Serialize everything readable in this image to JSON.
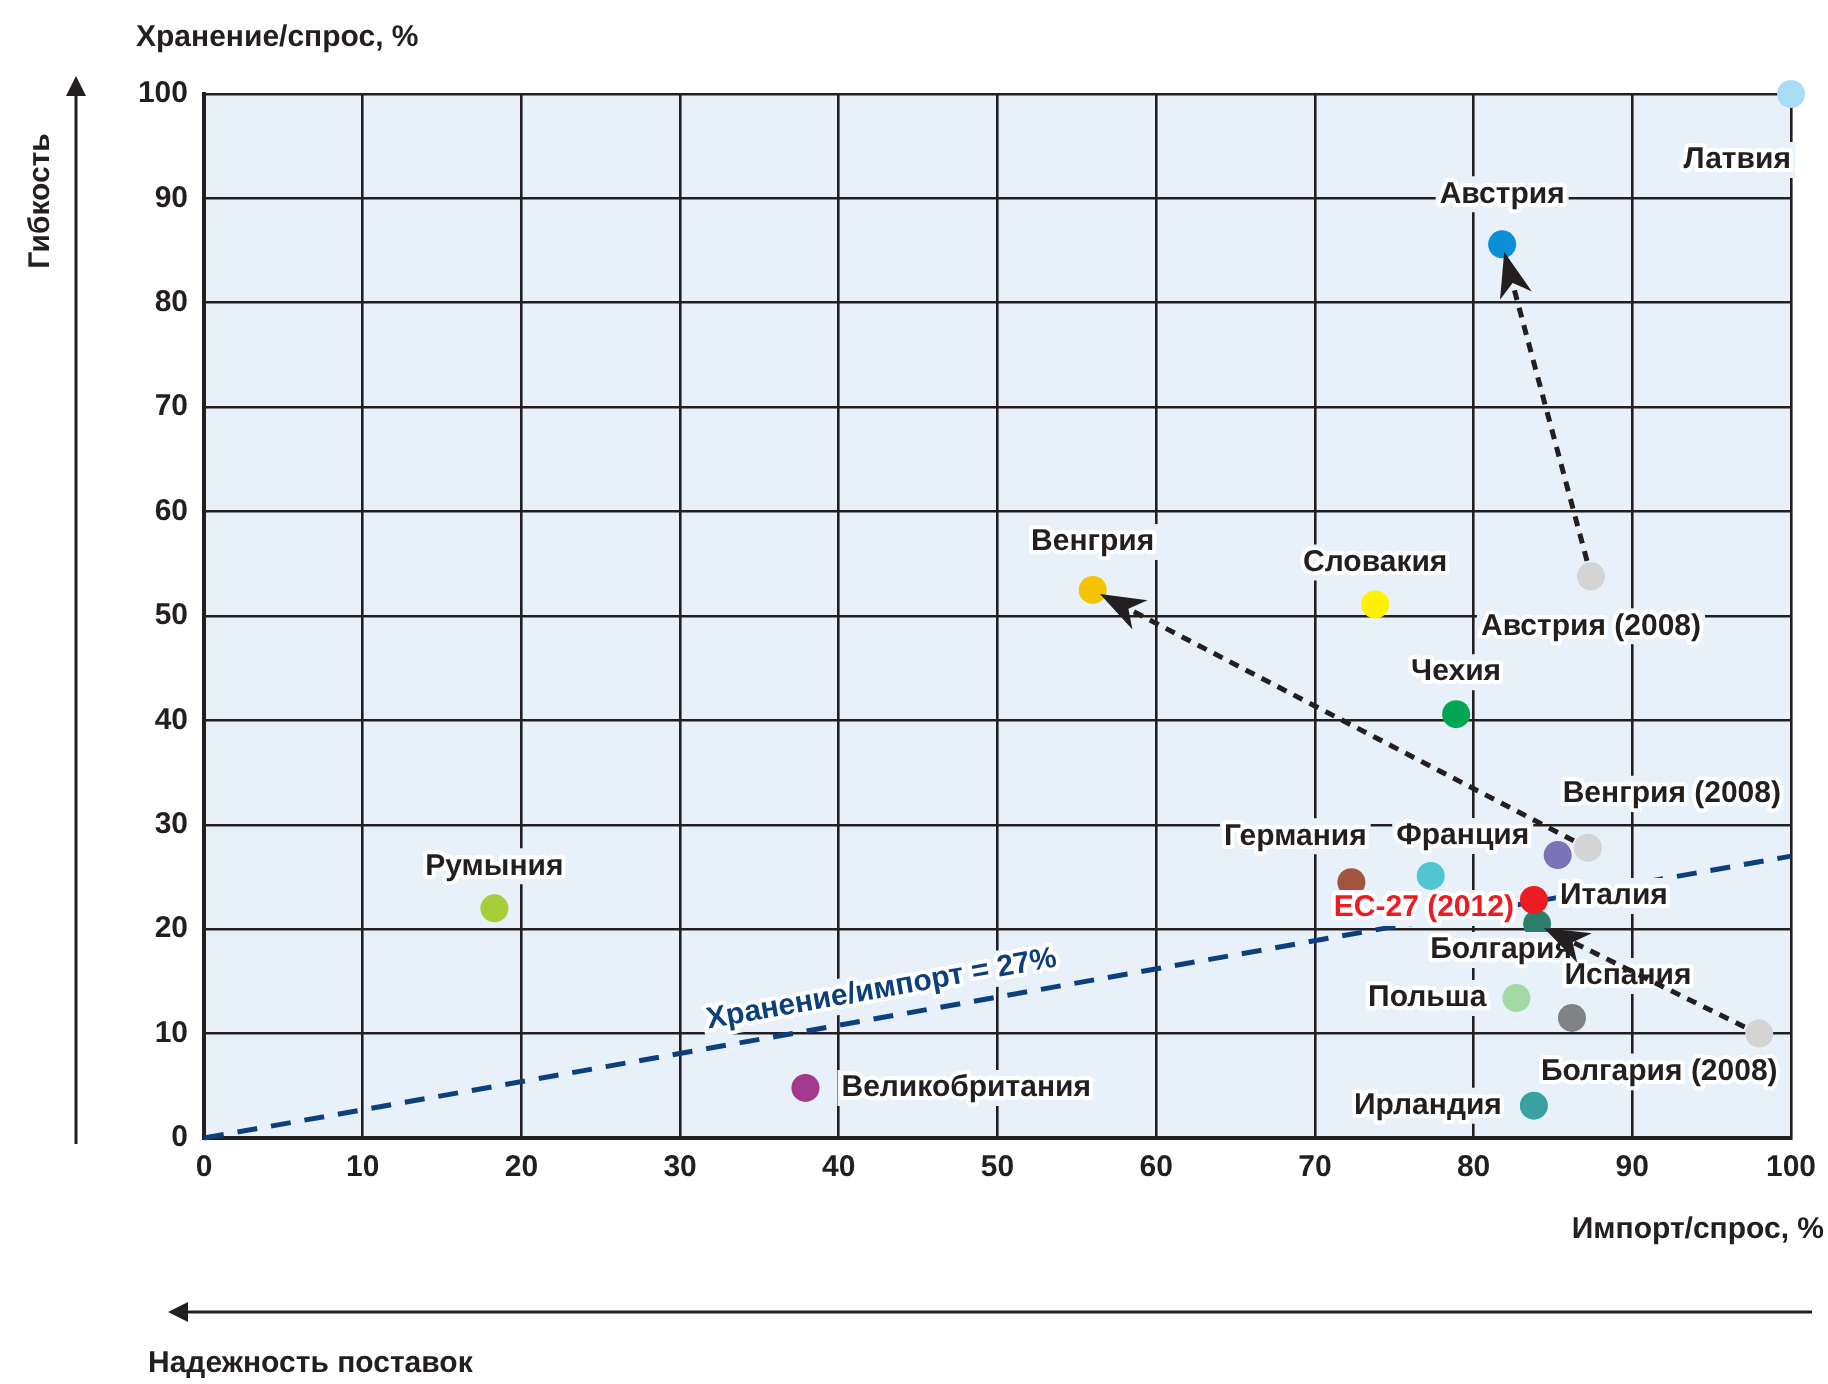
{
  "chart_data": {
    "type": "scatter",
    "xlabel": "Импорт/спрос, %",
    "ylabel": "Хранение/спрос, %",
    "xlim": [
      0,
      100
    ],
    "ylim": [
      0,
      100
    ],
    "xticks": [
      0,
      10,
      20,
      30,
      40,
      50,
      60,
      70,
      80,
      90,
      100
    ],
    "yticks": [
      0,
      10,
      20,
      30,
      40,
      50,
      60,
      70,
      80,
      90,
      100
    ],
    "grid": true,
    "legend": false,
    "marker": "circle",
    "annotations": [
      "Гибкость",
      "Надежность поставок",
      {
        "text": "Италия",
        "x": 83.8,
        "y": 22.8
      }
    ],
    "series": [
      {
        "name": "Латвия",
        "color": "#a8dcf5",
        "x": [
          100
        ],
        "values": [
          100
        ]
      },
      {
        "name": "Австрия",
        "color": "#0b8fd6",
        "x": [
          81.8
        ],
        "values": [
          85.6
        ]
      },
      {
        "name": "Австрия (2008)",
        "color": "#d4d4d4",
        "x": [
          87.4
        ],
        "values": [
          53.8
        ]
      },
      {
        "name": "Венгрия",
        "color": "#f5c400",
        "x": [
          56.0
        ],
        "values": [
          52.5
        ]
      },
      {
        "name": "Словакия",
        "color": "#fff200",
        "x": [
          73.8
        ],
        "values": [
          51.1
        ]
      },
      {
        "name": "Чехия",
        "color": "#00a651",
        "x": [
          78.9
        ],
        "values": [
          40.6
        ]
      },
      {
        "name": "Венгрия (2008)",
        "color": "#d4d4d4",
        "x": [
          87.2
        ],
        "values": [
          27.8
        ]
      },
      {
        "color": "#7b72b8",
        "x": [
          85.3
        ],
        "values": [
          27.1
        ]
      },
      {
        "name": "Германия",
        "color": "#a0563e",
        "x": [
          72.3
        ],
        "values": [
          24.5
        ]
      },
      {
        "name": "Франция",
        "color": "#52c5d3",
        "x": [
          77.3
        ],
        "values": [
          25.1
        ]
      },
      {
        "name": "ЕС-27 (2012)",
        "color": "#ed1c24",
        "x": [
          83.8
        ],
        "values": [
          22.8
        ]
      },
      {
        "name": "Болгария",
        "color": "#2e7d6b",
        "x": [
          84.0
        ],
        "values": [
          20.5
        ]
      },
      {
        "name": "Польша",
        "color": "#a3d9a5",
        "x": [
          82.7
        ],
        "values": [
          13.4
        ]
      },
      {
        "name": "Испания",
        "color": "#808285",
        "x": [
          86.2
        ],
        "values": [
          11.5
        ]
      },
      {
        "name": "Болгария (2008)",
        "color": "#d4d4d4",
        "x": [
          98.0
        ],
        "values": [
          10.0
        ]
      },
      {
        "name": "Ирландия",
        "color": "#3aa0a0",
        "x": [
          83.8
        ],
        "values": [
          3.1
        ]
      },
      {
        "name": "Румыния",
        "color": "#a6ce39",
        "x": [
          18.3
        ],
        "values": [
          22.0
        ]
      },
      {
        "name": "Великобритания",
        "color": "#a3388f",
        "x": [
          37.9
        ],
        "values": [
          4.8
        ]
      },
      {
        "name": "Хранение/импорт = 27%",
        "type": "line",
        "line_style": "dashed",
        "marker": "none",
        "color": "#0d3f7c",
        "x": [
          0,
          100
        ],
        "values": [
          0,
          27
        ]
      }
    ]
  }
}
